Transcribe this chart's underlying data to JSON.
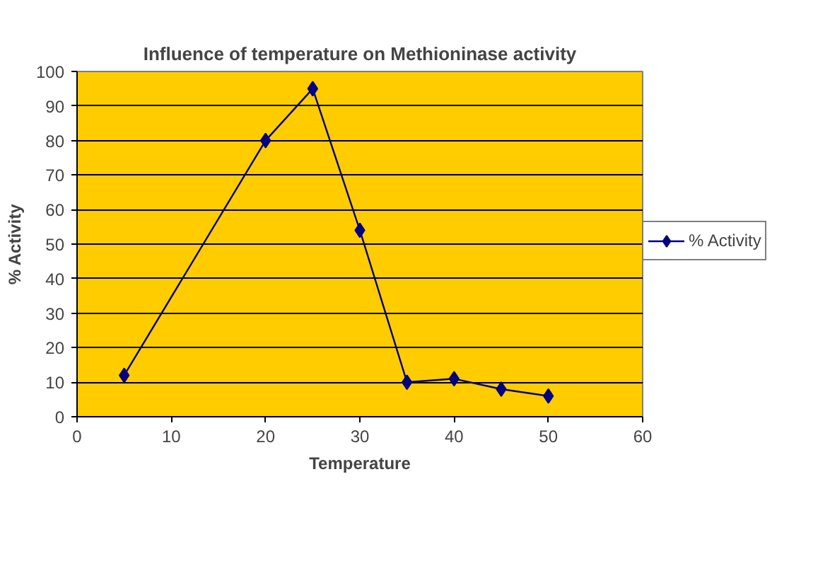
{
  "chart_data": {
    "type": "line",
    "title": "Influence of temperature on Methioninase activity",
    "xlabel": "Temperature",
    "ylabel": "% Activity",
    "x": [
      5,
      20,
      25,
      30,
      35,
      40,
      45,
      50
    ],
    "series": [
      {
        "name": "% Activity",
        "color": "#000080",
        "values": [
          12,
          80,
          95,
          54,
          10,
          11,
          8,
          6
        ]
      }
    ],
    "xlim": [
      0,
      60
    ],
    "xticks": [
      0,
      10,
      20,
      30,
      40,
      50,
      60
    ],
    "ylim": [
      0,
      100
    ],
    "yticks": [
      0,
      10,
      20,
      30,
      40,
      50,
      60,
      70,
      80,
      90,
      100
    ],
    "grid": "y",
    "legend": "right",
    "marker": "diamond",
    "line_style": "solid"
  }
}
